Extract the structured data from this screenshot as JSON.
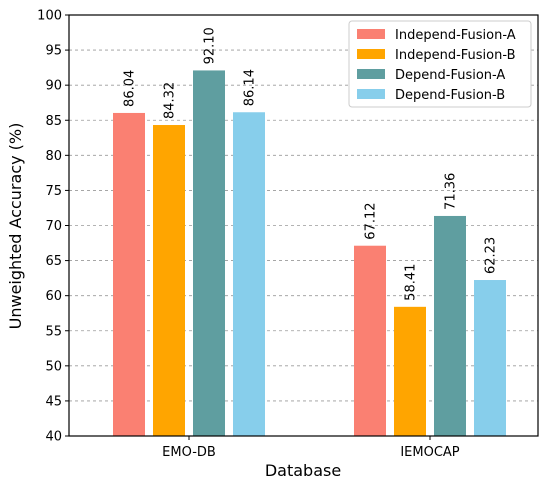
{
  "chart_data": {
    "type": "bar",
    "xlabel": "Database",
    "ylabel": "Unweighted Accuracy (%)",
    "categories": [
      "EMO-DB",
      "IEMOCAP"
    ],
    "ylim": [
      40,
      100
    ],
    "yticks": [
      40,
      45,
      50,
      55,
      60,
      65,
      70,
      75,
      80,
      85,
      90,
      95,
      100
    ],
    "grid": "horizontal dashed",
    "legend_position": "top-right",
    "value_labels": "rotated vertical above bars",
    "series": [
      {
        "name": "Independ-Fusion-A",
        "color": "#FA8072",
        "values": [
          86.04,
          67.12
        ],
        "labels": [
          "86.04",
          "67.12"
        ]
      },
      {
        "name": "Independ-Fusion-B",
        "color": "#FFA500",
        "values": [
          84.32,
          58.41
        ],
        "labels": [
          "84.32",
          "58.41"
        ]
      },
      {
        "name": "Depend-Fusion-A",
        "color": "#5F9EA0",
        "values": [
          92.1,
          71.36
        ],
        "labels": [
          "92.10",
          "71.36"
        ]
      },
      {
        "name": "Depend-Fusion-B",
        "color": "#87CEEB",
        "values": [
          86.14,
          62.23
        ],
        "labels": [
          "86.14",
          "62.23"
        ]
      }
    ]
  }
}
